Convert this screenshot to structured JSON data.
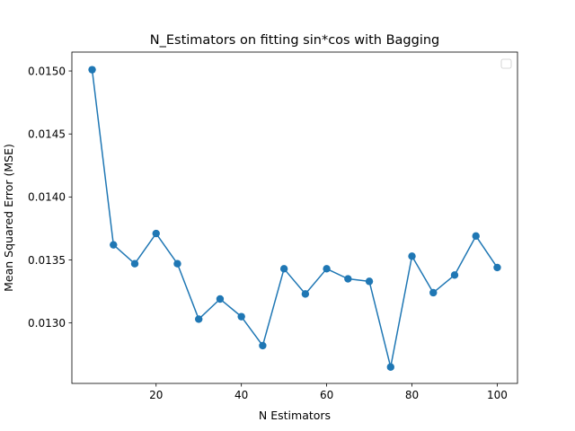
{
  "chart_data": {
    "type": "line",
    "title": "N_Estimators on fitting sin*cos with Bagging",
    "xlabel": "N Estimators",
    "ylabel": "Mean Squared Error (MSE)",
    "xlim": [
      0.25,
      104.75
    ],
    "ylim": [
      0.01252,
      0.01515
    ],
    "xticks": [
      20,
      40,
      60,
      80,
      100
    ],
    "xtick_labels": [
      "20",
      "40",
      "60",
      "80",
      "100"
    ],
    "yticks": [
      0.013,
      0.0135,
      0.014,
      0.0145,
      0.015
    ],
    "ytick_labels": [
      "0.0130",
      "0.0135",
      "0.0140",
      "0.0145",
      "0.0150"
    ],
    "grid": false,
    "legend": {
      "placement": "top-right",
      "entries": []
    },
    "series": [
      {
        "color": "#1f77b4",
        "marker": "circle",
        "x": [
          5,
          10,
          15,
          20,
          25,
          30,
          35,
          40,
          45,
          50,
          55,
          60,
          65,
          70,
          75,
          80,
          85,
          90,
          95,
          100
        ],
        "values": [
          0.01501,
          0.01362,
          0.01347,
          0.01371,
          0.01347,
          0.01303,
          0.01319,
          0.01305,
          0.01282,
          0.01343,
          0.01323,
          0.01343,
          0.01335,
          0.01333,
          0.01265,
          0.01353,
          0.01324,
          0.01338,
          0.01369,
          0.01344
        ]
      }
    ]
  }
}
